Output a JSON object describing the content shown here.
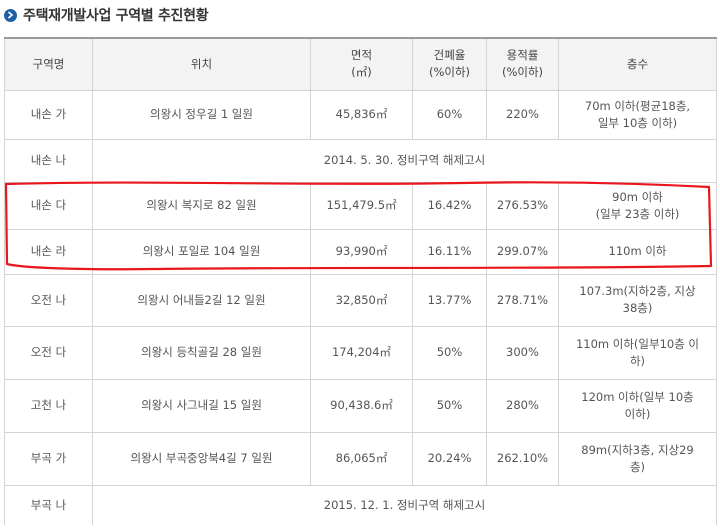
{
  "title": "주택재개발사업 구역별 추진현황",
  "headers": {
    "zone": "구역명",
    "location": "위치",
    "area_line1": "면적",
    "area_line2": "(㎡)",
    "coverage_line1": "건폐율",
    "coverage_line2": "(%이하)",
    "far_line1": "용적률",
    "far_line2": "(%이하)",
    "floors": "층수"
  },
  "rows": [
    {
      "zone": "내손 가",
      "location": "의왕시 정우길 1 일원",
      "area": "45,836㎡",
      "coverage": "60%",
      "far": "220%",
      "floors_line1": "70m 이하(평균18층,",
      "floors_line2": "일부 10층 이하)"
    },
    {
      "zone": "내손 나",
      "note": "2014. 5. 30. 정비구역 해제고시"
    },
    {
      "zone": "내손 다",
      "location": "의왕시 복지로 82 일원",
      "area": "151,479.5㎡",
      "coverage": "16.42%",
      "far": "276.53%",
      "floors_line1": "90m 이하",
      "floors_line2": "(일부 23층 이하)"
    },
    {
      "zone": "내손 라",
      "location": "의왕시 포일로 104 일원",
      "area": "93,990㎡",
      "coverage": "16.11%",
      "far": "299.07%",
      "floors_line1": "110m 이하",
      "floors_line2": ""
    },
    {
      "zone": "오전 나",
      "location": "의왕시 어내들2길 12 일원",
      "area": "32,850㎡",
      "coverage": "13.77%",
      "far": "278.71%",
      "floors_line1": "107.3m(지하2층, 지상",
      "floors_line2": "38층)"
    },
    {
      "zone": "오전 다",
      "location": "의왕시 등칙골길 28 일원",
      "area": "174,204㎡",
      "coverage": "50%",
      "far": "300%",
      "floors_line1": "110m 이하(일부10층 이",
      "floors_line2": "하)"
    },
    {
      "zone": "고천 나",
      "location": "의왕시 사그내길 15 일원",
      "area": "90,438.6㎡",
      "coverage": "50%",
      "far": "280%",
      "floors_line1": "120m 이하(일부 10층",
      "floors_line2": "이하)"
    },
    {
      "zone": "부곡 가",
      "location": "의왕시 부곡중앙북4길 7 일원",
      "area": "86,065㎡",
      "coverage": "20.24%",
      "far": "262.10%",
      "floors_line1": "89m(지하3층, 지상29",
      "floors_line2": "층)"
    },
    {
      "zone": "부곡 나",
      "note": "2015. 12. 1. 정비구역 해제고시"
    }
  ],
  "colors": {
    "accent": "#1f5fa8",
    "highlight": "#e8161d",
    "header_bg": "#f3f3f3",
    "border": "#d4d4d4"
  }
}
